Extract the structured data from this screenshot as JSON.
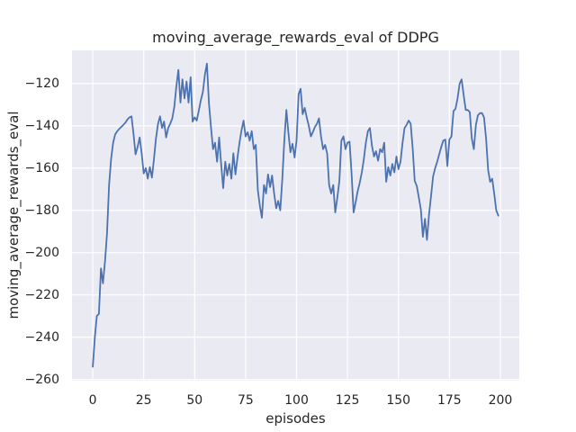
{
  "chart_data": {
    "type": "line",
    "title": "moving_average_rewards_eval of DDPG",
    "xlabel": "episodes",
    "ylabel": "moving_average_rewards_eval",
    "legend": "none",
    "grid": true,
    "plot_bg_color": "#EAEAF2",
    "grid_color": "#FFFFFF",
    "line_color": "#4C72B0",
    "text_color": "#262626",
    "xticks": [
      0,
      25,
      50,
      75,
      100,
      125,
      150,
      175,
      200
    ],
    "yticks": [
      -260,
      -240,
      -220,
      -200,
      -180,
      -160,
      -140,
      -120
    ],
    "xlim": [
      -10.2,
      209.3
    ],
    "ylim": [
      -260.6,
      -104.3
    ],
    "x_start": 0,
    "x_step": 1,
    "values": [
      -254,
      -240,
      -230,
      -229,
      -207.5,
      -214.5,
      -204,
      -191,
      -168,
      -155.5,
      -148,
      -144,
      -142.5,
      -141.5,
      -140.5,
      -139.5,
      -138.5,
      -137,
      -136,
      -135.5,
      -144,
      -153.5,
      -150,
      -145.5,
      -153,
      -162.5,
      -160,
      -165,
      -159.5,
      -164.5,
      -156,
      -146,
      -139,
      -135.5,
      -141,
      -138,
      -145.5,
      -141,
      -139,
      -136.5,
      -131,
      -121.5,
      -113.5,
      -129,
      -118,
      -127,
      -119,
      -129,
      -117,
      -138,
      -136,
      -137.5,
      -133,
      -128,
      -124,
      -116,
      -110.5,
      -129.5,
      -140.5,
      -151,
      -148,
      -157,
      -145.5,
      -158,
      -169.5,
      -157,
      -163.5,
      -158,
      -165,
      -153,
      -163,
      -155,
      -148,
      -142,
      -137.5,
      -145,
      -143,
      -147,
      -142.5,
      -151,
      -149,
      -170.5,
      -178,
      -183.5,
      -168,
      -172,
      -163,
      -169,
      -163.5,
      -172,
      -179,
      -175.5,
      -180,
      -165,
      -147,
      -132.5,
      -143.5,
      -152.5,
      -148.5,
      -155,
      -147,
      -125,
      -122.5,
      -134.5,
      -131.5,
      -136,
      -140,
      -145,
      -143,
      -140.5,
      -139,
      -136.5,
      -145,
      -151,
      -149,
      -153,
      -168,
      -172,
      -168,
      -181,
      -174,
      -166,
      -147,
      -145,
      -151,
      -148,
      -147.5,
      -163,
      -181,
      -176,
      -171,
      -167,
      -162,
      -156,
      -148,
      -142.5,
      -141,
      -149.5,
      -154.5,
      -152,
      -156.5,
      -151,
      -152.5,
      -148,
      -166.5,
      -159.5,
      -163.5,
      -158,
      -162,
      -154.5,
      -160.5,
      -157,
      -148,
      -141,
      -139.5,
      -137.5,
      -139,
      -151,
      -166,
      -168.5,
      -174,
      -179.5,
      -192.5,
      -184,
      -194,
      -182,
      -173,
      -164,
      -160,
      -157,
      -153.5,
      -150,
      -147,
      -146.5,
      -159,
      -146.5,
      -145,
      -133,
      -132,
      -127,
      -120,
      -118,
      -125.5,
      -132.5,
      -132.5,
      -133.5,
      -146,
      -151,
      -139.5,
      -135,
      -134,
      -134,
      -136,
      -146,
      -161,
      -166.5,
      -165,
      -172,
      -180,
      -182.5
    ]
  }
}
